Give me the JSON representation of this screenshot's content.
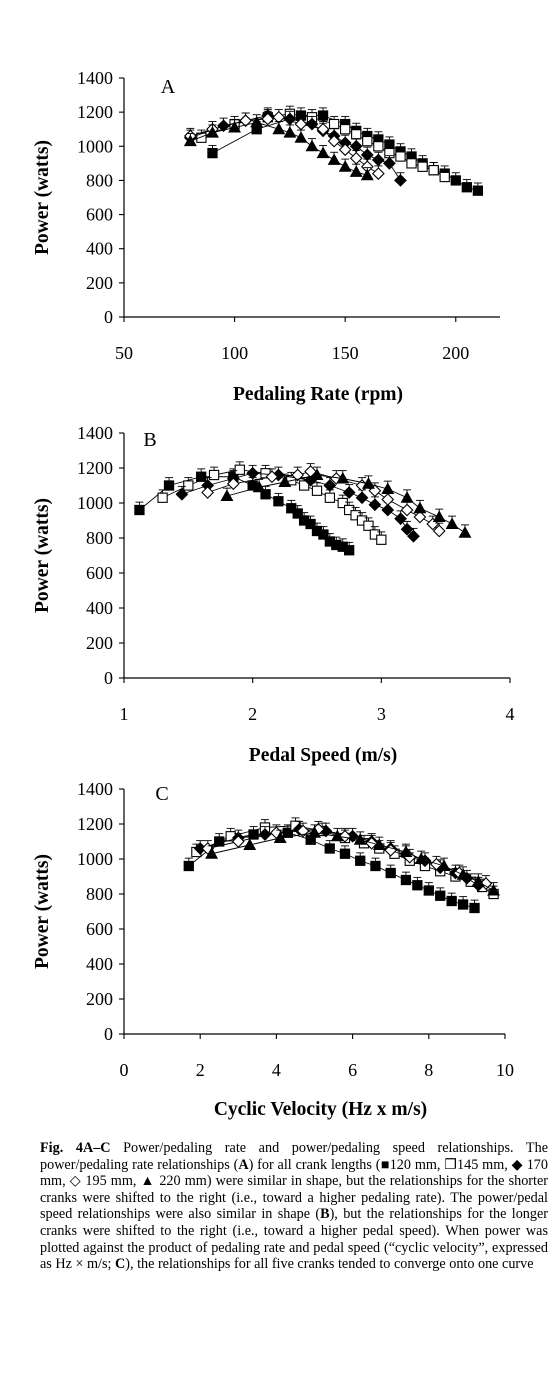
{
  "chart_data": [
    {
      "type": "scatter",
      "panel_label": "A",
      "xlabel": "Pedaling Rate (rpm)",
      "ylabel": "Power (watts)",
      "xlim": [
        50,
        220
      ],
      "ylim": [
        0,
        1400
      ],
      "xticks": [
        50,
        100,
        150,
        200
      ],
      "yticks": [
        0,
        200,
        400,
        600,
        800,
        1000,
        1200,
        1400
      ],
      "grid": false,
      "legend": "none",
      "series": [
        {
          "marker": "filled-square",
          "x": [
            90,
            110,
            130,
            140,
            150,
            155,
            160,
            165,
            170,
            175,
            180,
            185,
            190,
            195,
            200,
            205,
            210
          ],
          "y": [
            960,
            1100,
            1180,
            1180,
            1130,
            1090,
            1060,
            1040,
            1010,
            970,
            940,
            900,
            860,
            840,
            800,
            760,
            740
          ]
        },
        {
          "marker": "open-square",
          "x": [
            85,
            100,
            115,
            125,
            135,
            145,
            150,
            155,
            160,
            165,
            170,
            175,
            180,
            185,
            190,
            195
          ],
          "y": [
            1050,
            1130,
            1170,
            1190,
            1170,
            1130,
            1100,
            1070,
            1030,
            1000,
            960,
            940,
            900,
            880,
            860,
            820
          ]
        },
        {
          "marker": "filled-diamond",
          "x": [
            80,
            95,
            105,
            115,
            125,
            135,
            140,
            145,
            150,
            155,
            160,
            165,
            170,
            175
          ],
          "y": [
            1050,
            1120,
            1150,
            1180,
            1160,
            1130,
            1090,
            1060,
            1020,
            1000,
            950,
            920,
            900,
            800
          ]
        },
        {
          "marker": "open-diamond",
          "x": [
            80,
            90,
            105,
            115,
            120,
            130,
            140,
            145,
            150,
            155,
            160,
            165
          ],
          "y": [
            1060,
            1100,
            1150,
            1160,
            1170,
            1130,
            1100,
            1030,
            980,
            930,
            880,
            840
          ]
        },
        {
          "marker": "filled-triangle",
          "x": [
            80,
            90,
            100,
            110,
            120,
            125,
            130,
            135,
            140,
            145,
            150,
            155,
            160
          ],
          "y": [
            1030,
            1080,
            1110,
            1140,
            1100,
            1080,
            1050,
            1000,
            960,
            920,
            880,
            850,
            830
          ]
        }
      ]
    },
    {
      "type": "scatter",
      "panel_label": "B",
      "xlabel": "Pedal Speed (m/s)",
      "ylabel": "Power (watts)",
      "xlim": [
        1,
        4
      ],
      "ylim": [
        0,
        1400
      ],
      "xticks": [
        1,
        2,
        3,
        4
      ],
      "yticks": [
        0,
        200,
        400,
        600,
        800,
        1000,
        1200,
        1400
      ],
      "grid": false,
      "legend": "none",
      "series": [
        {
          "marker": "filled-square",
          "x": [
            1.12,
            1.35,
            1.6,
            1.85,
            2.0,
            2.1,
            2.2,
            2.3,
            2.35,
            2.4,
            2.45,
            2.5,
            2.55,
            2.6,
            2.65,
            2.7,
            2.75
          ],
          "y": [
            960,
            1100,
            1150,
            1150,
            1100,
            1050,
            1010,
            970,
            940,
            900,
            880,
            840,
            820,
            780,
            760,
            750,
            730
          ]
        },
        {
          "marker": "open-square",
          "x": [
            1.3,
            1.5,
            1.7,
            1.9,
            2.1,
            2.3,
            2.4,
            2.5,
            2.6,
            2.7,
            2.75,
            2.8,
            2.85,
            2.9,
            2.95,
            3.0
          ],
          "y": [
            1030,
            1100,
            1160,
            1190,
            1170,
            1130,
            1100,
            1070,
            1030,
            1000,
            960,
            930,
            900,
            870,
            820,
            790
          ]
        },
        {
          "marker": "filled-diamond",
          "x": [
            1.45,
            1.65,
            1.85,
            2.0,
            2.2,
            2.45,
            2.6,
            2.75,
            2.85,
            2.95,
            3.05,
            3.15,
            3.2,
            3.25
          ],
          "y": [
            1050,
            1100,
            1140,
            1170,
            1160,
            1130,
            1100,
            1060,
            1030,
            990,
            960,
            910,
            850,
            810
          ]
        },
        {
          "marker": "open-diamond",
          "x": [
            1.65,
            1.85,
            2.15,
            2.35,
            2.45,
            2.65,
            2.85,
            2.95,
            3.05,
            3.2,
            3.3,
            3.4,
            3.45
          ],
          "y": [
            1060,
            1110,
            1150,
            1160,
            1180,
            1140,
            1100,
            1070,
            1020,
            960,
            920,
            880,
            840
          ]
        },
        {
          "marker": "filled-triangle",
          "x": [
            1.8,
            2.05,
            2.25,
            2.5,
            2.7,
            2.9,
            3.05,
            3.2,
            3.3,
            3.45,
            3.55,
            3.65
          ],
          "y": [
            1040,
            1090,
            1120,
            1160,
            1140,
            1110,
            1080,
            1030,
            970,
            920,
            880,
            830
          ]
        }
      ]
    },
    {
      "type": "scatter",
      "panel_label": "C",
      "xlabel": "Cyclic Velocity (Hz x m/s)",
      "ylabel": "Power (watts)",
      "xlim": [
        0,
        10
      ],
      "ylim": [
        0,
        1400
      ],
      "xticks": [
        0,
        2,
        4,
        6,
        8,
        10
      ],
      "yticks": [
        0,
        200,
        400,
        600,
        800,
        1000,
        1200,
        1400
      ],
      "grid": false,
      "legend": "none",
      "series": [
        {
          "marker": "filled-square",
          "x": [
            1.7,
            2.5,
            3.4,
            4.3,
            4.9,
            5.4,
            5.8,
            6.2,
            6.6,
            7.0,
            7.4,
            7.7,
            8.0,
            8.3,
            8.6,
            8.9,
            9.2
          ],
          "y": [
            960,
            1100,
            1140,
            1150,
            1110,
            1060,
            1030,
            990,
            960,
            920,
            880,
            850,
            820,
            790,
            760,
            740,
            720
          ]
        },
        {
          "marker": "open-square",
          "x": [
            1.9,
            2.8,
            3.7,
            4.5,
            5.2,
            5.8,
            6.3,
            6.7,
            7.1,
            7.5,
            7.9,
            8.3,
            8.7,
            9.1,
            9.4,
            9.7
          ],
          "y": [
            1040,
            1130,
            1180,
            1190,
            1160,
            1120,
            1090,
            1060,
            1030,
            990,
            960,
            930,
            900,
            870,
            840,
            800
          ]
        },
        {
          "marker": "filled-diamond",
          "x": [
            2.0,
            3.0,
            3.7,
            4.6,
            5.3,
            6.0,
            6.5,
            7.0,
            7.4,
            7.9,
            8.3,
            8.7,
            9.0,
            9.3
          ],
          "y": [
            1060,
            1120,
            1140,
            1170,
            1160,
            1130,
            1100,
            1060,
            1030,
            990,
            950,
            920,
            890,
            850
          ]
        },
        {
          "marker": "open-diamond",
          "x": [
            2.2,
            3.0,
            4.0,
            4.7,
            5.1,
            5.8,
            6.5,
            7.0,
            7.5,
            8.2,
            8.8,
            9.5
          ],
          "y": [
            1060,
            1100,
            1150,
            1160,
            1170,
            1130,
            1090,
            1050,
            1010,
            970,
            920,
            860
          ]
        },
        {
          "marker": "filled-triangle",
          "x": [
            2.3,
            3.3,
            4.1,
            5.0,
            5.6,
            6.2,
            6.7,
            7.4,
            7.8,
            8.4,
            8.9,
            9.3,
            9.7
          ],
          "y": [
            1030,
            1080,
            1120,
            1150,
            1130,
            1110,
            1080,
            1040,
            1000,
            960,
            910,
            870,
            820
          ]
        }
      ]
    }
  ],
  "caption": {
    "label": "Fig. 4A–C",
    "parts": [
      {
        "b": false,
        "t": " Power/pedaling rate and power/pedaling speed relationships. The power/pedaling rate relationships ("
      },
      {
        "b": true,
        "t": "A"
      },
      {
        "b": false,
        "t": ") for all crank lengths (■120 mm, ❐145 mm, ◆ 170 mm, ◇ 195 mm, ▲ 220 mm) were similar in shape, but the relationships for the shorter cranks were shifted to the right (i.e., toward a higher pedaling rate). The power/pedal speed relationships were also similar in shape ("
      },
      {
        "b": true,
        "t": "B"
      },
      {
        "b": false,
        "t": "), but the relationships for the longer cranks were shifted to the right (i.e., toward a higher pedal speed). When power was plotted against the product of pedaling rate and pedal speed (“cyclic velocity”, expressed as Hz × m/s; "
      },
      {
        "b": true,
        "t": "C"
      },
      {
        "b": false,
        "t": "), the relationships for all five cranks tended to converge onto one curve"
      }
    ]
  }
}
